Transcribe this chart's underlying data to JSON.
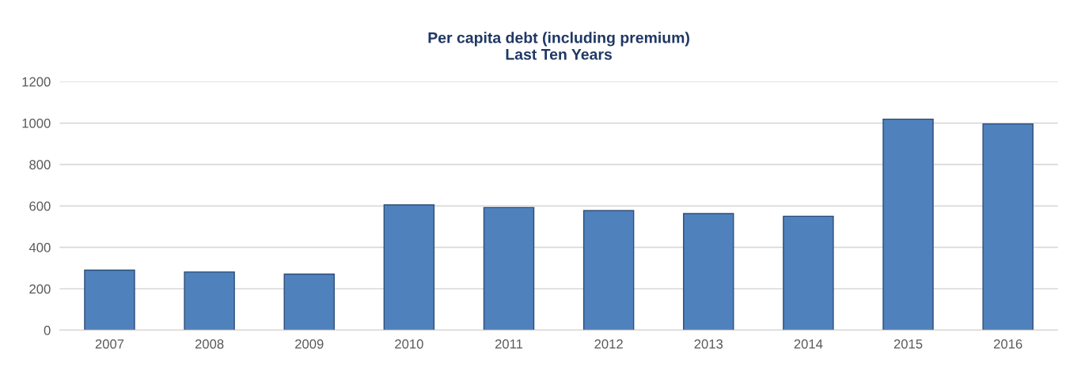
{
  "chart_data": {
    "type": "bar",
    "title": "Per capita debt (including premium)\nLast Ten Years",
    "categories": [
      "2007",
      "2008",
      "2009",
      "2010",
      "2011",
      "2012",
      "2013",
      "2014",
      "2015",
      "2016"
    ],
    "values": [
      290,
      281,
      271,
      605,
      592,
      577,
      563,
      550,
      1019,
      996
    ],
    "color": "#4f81bd",
    "ylim": [
      0,
      1200
    ],
    "yticks": [
      0,
      200,
      400,
      600,
      800,
      1000,
      1200
    ],
    "grid": "y",
    "legend": false
  }
}
